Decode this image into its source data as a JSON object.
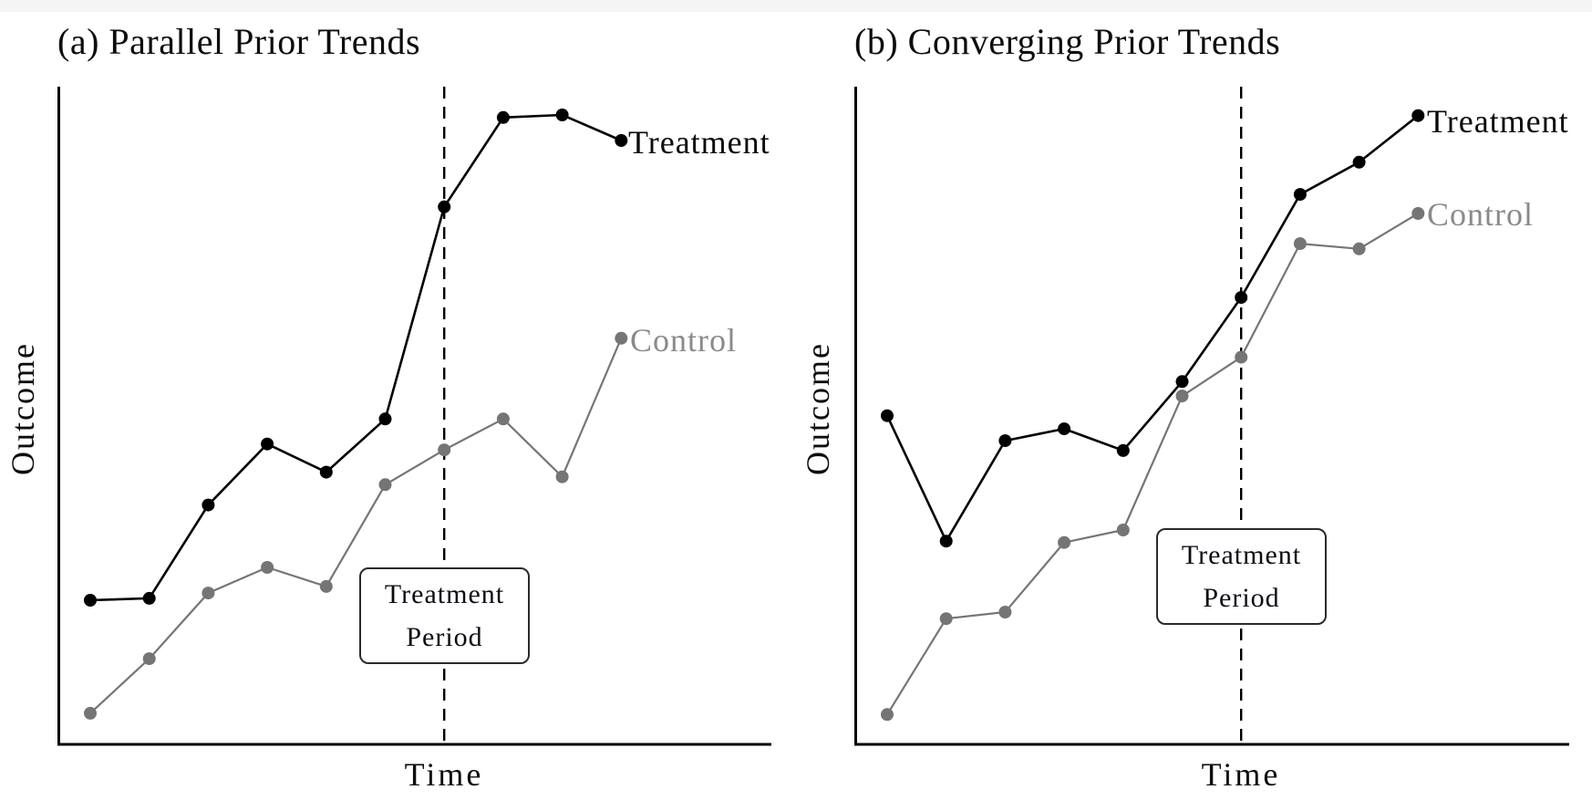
{
  "figure": {
    "background_color": "#ffffff",
    "top_strip_color": "#f5f5f5",
    "axis_color": "#000000",
    "dashed_line_color": "#000000"
  },
  "chart_data": [
    {
      "type": "line",
      "panel": "a",
      "title": "(a) Parallel Prior Trends",
      "xlabel": "Time",
      "ylabel": "Outcome",
      "x": [
        1,
        2,
        3,
        4,
        5,
        6,
        7,
        8,
        9,
        10
      ],
      "ylim": [
        0,
        100
      ],
      "grid": false,
      "tick_labels_shown": false,
      "treatment_period_x_index": 7,
      "legend": "line-end-labels",
      "annotation": {
        "lines": [
          "Treatment",
          "Period"
        ]
      },
      "series": [
        {
          "name": "Treatment",
          "color": "#000000",
          "label_color": "#0b0b0b",
          "values": [
            21.8,
            22.1,
            36.3,
            45.6,
            41.3,
            49.4,
            81.7,
            95.3,
            95.7,
            91.8
          ]
        },
        {
          "name": "Control",
          "color": "#757575",
          "label_color": "#8a8a8a",
          "values": [
            4.6,
            12.9,
            22.9,
            26.8,
            23.9,
            39.4,
            44.7,
            49.4,
            40.6,
            61.7
          ]
        }
      ]
    },
    {
      "type": "line",
      "panel": "b",
      "title": "(b) Converging Prior Trends",
      "xlabel": "Time",
      "ylabel": "Outcome",
      "x": [
        1,
        2,
        3,
        4,
        5,
        6,
        7,
        8,
        9,
        10
      ],
      "ylim": [
        0,
        100
      ],
      "grid": false,
      "tick_labels_shown": false,
      "treatment_period_x_index": 7,
      "legend": "line-end-labels",
      "annotation": {
        "lines": [
          "Treatment",
          "Period"
        ]
      },
      "series": [
        {
          "name": "Treatment",
          "color": "#000000",
          "label_color": "#0b0b0b",
          "values": [
            49.9,
            30.8,
            46.1,
            47.9,
            44.6,
            55.1,
            67.9,
            83.6,
            88.5,
            95.6
          ]
        },
        {
          "name": "Control",
          "color": "#757575",
          "label_color": "#8a8a8a",
          "values": [
            4.4,
            19.0,
            20.0,
            30.6,
            32.5,
            52.9,
            58.8,
            76.1,
            75.3,
            80.7
          ]
        }
      ]
    }
  ]
}
